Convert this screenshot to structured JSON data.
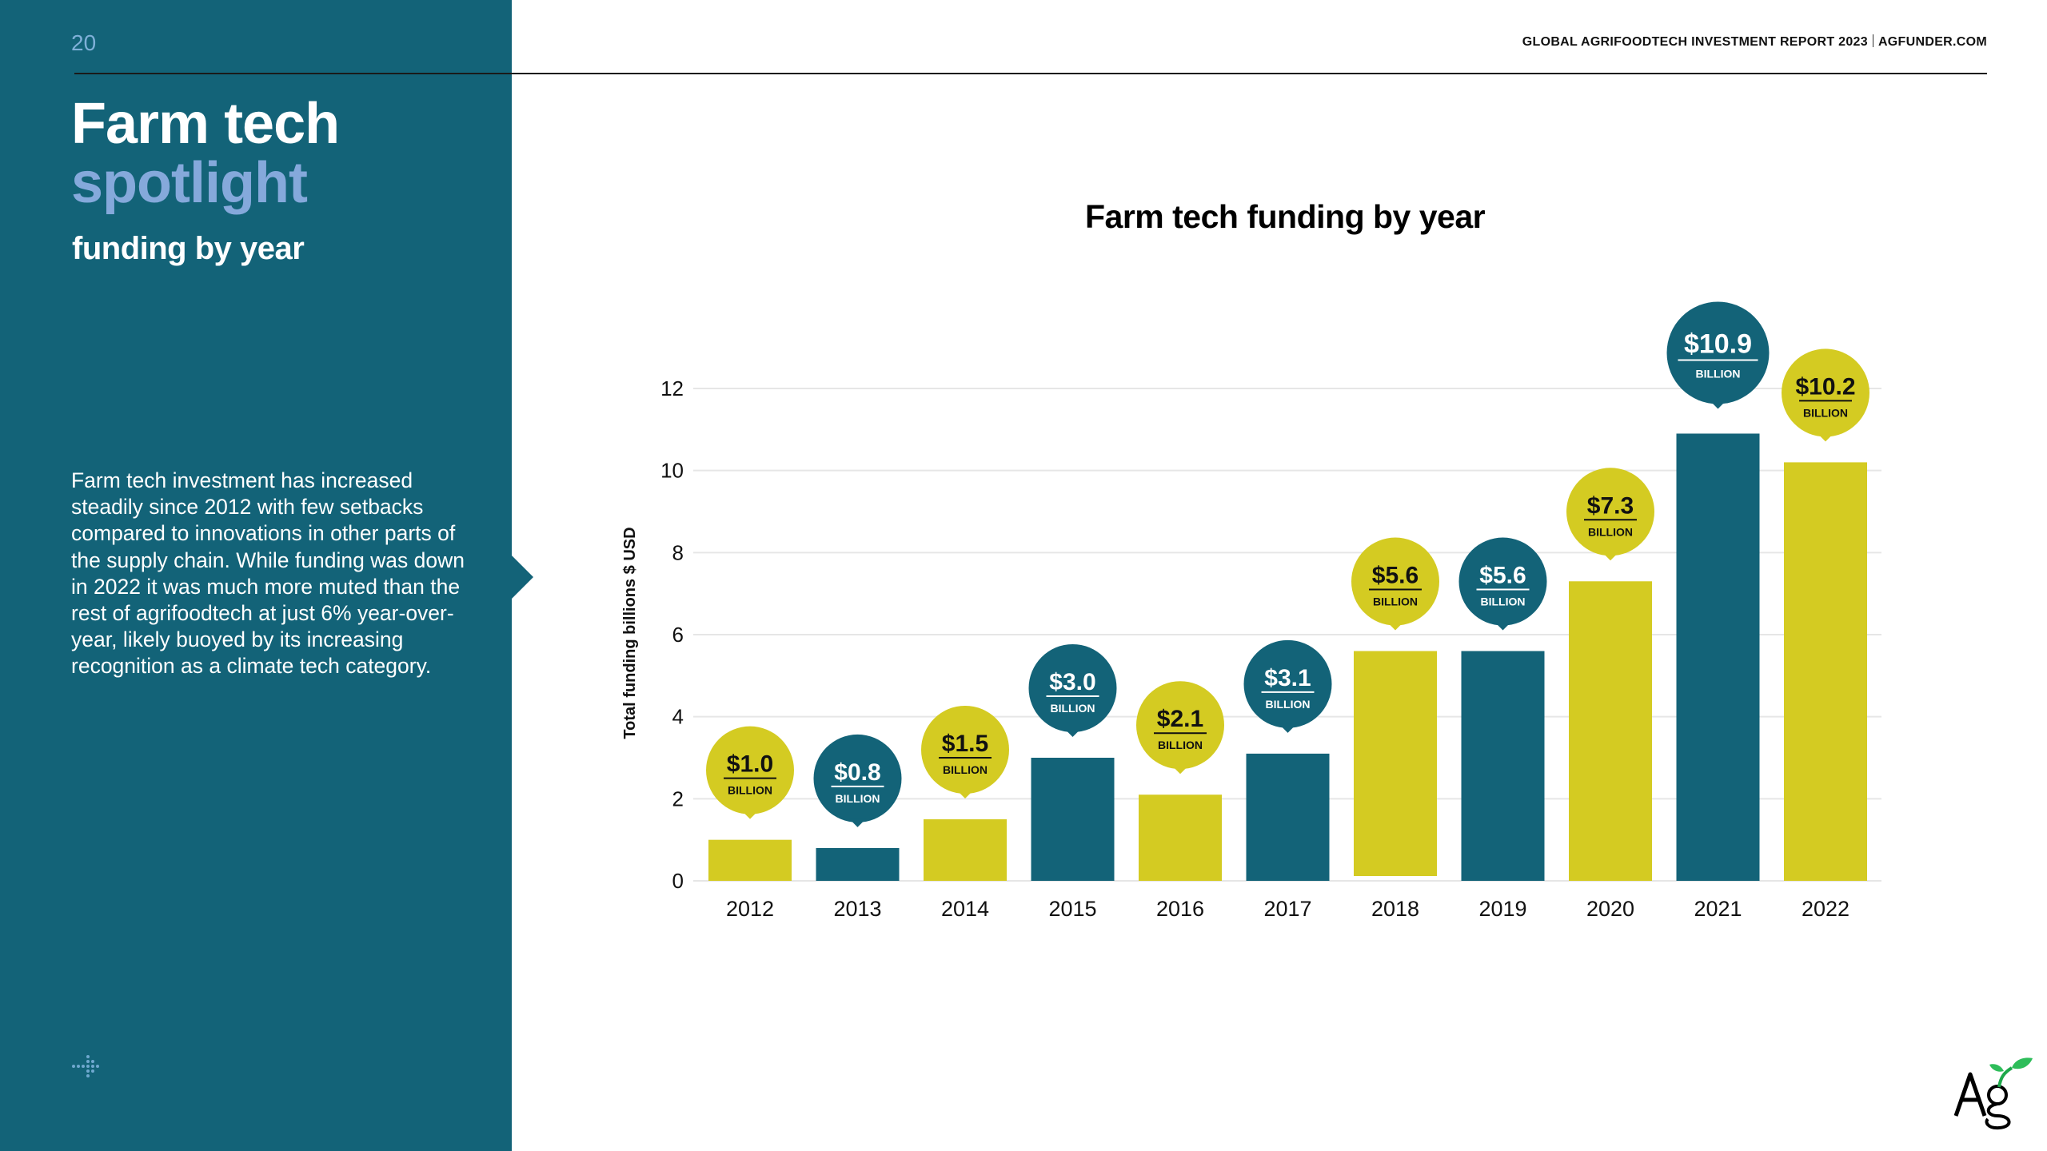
{
  "page": {
    "page_number": "20",
    "report_title": "GLOBAL AGRIFOODTECH INVESTMENT REPORT 2023",
    "report_site": "AGFUNDER.COM"
  },
  "sidebar": {
    "title_line1": "Farm tech",
    "title_line2": "spotlight",
    "subtitle": "funding by year",
    "body": "Farm tech investment has increased steadily since 2012 with few setbacks compared to innovations in other parts of the supply chain. While funding was down in 2022 it was much more muted than the rest of agrifoodtech at just 6% year-over-year, likely buoyed by its increasing recognition as a climate tech category.",
    "bottom_icon": "dotted-arrow-icon",
    "logo_text": "Ag"
  },
  "colors": {
    "teal": "#136378",
    "yellow": "#d4cb22",
    "light_blue": "#85a9db",
    "grid": "#e6e6e6"
  },
  "chart_data": {
    "type": "bar",
    "title": "Farm tech funding by year",
    "xlabel": "",
    "ylabel": "Total funding billions $ USD",
    "ylim": [
      0,
      12
    ],
    "yticks": [
      0,
      2,
      4,
      6,
      8,
      10,
      12
    ],
    "grid": true,
    "categories": [
      "2012",
      "2013",
      "2014",
      "2015",
      "2016",
      "2017",
      "2018",
      "2019",
      "2020",
      "2021",
      "2022"
    ],
    "values": [
      1.0,
      0.8,
      1.5,
      3.0,
      2.1,
      3.1,
      5.6,
      5.6,
      7.3,
      10.9,
      10.2
    ],
    "bar_colors": [
      "yellow",
      "teal",
      "yellow",
      "teal",
      "yellow",
      "teal",
      "yellow",
      "teal",
      "yellow",
      "teal",
      "yellow"
    ],
    "data_labels": [
      "$1.0",
      "$0.8",
      "$1.5",
      "$3.0",
      "$2.1",
      "$3.1",
      "$5.6",
      "$5.6",
      "$7.3",
      "$10.9",
      "$10.2"
    ],
    "data_label_unit": "BILLION"
  }
}
